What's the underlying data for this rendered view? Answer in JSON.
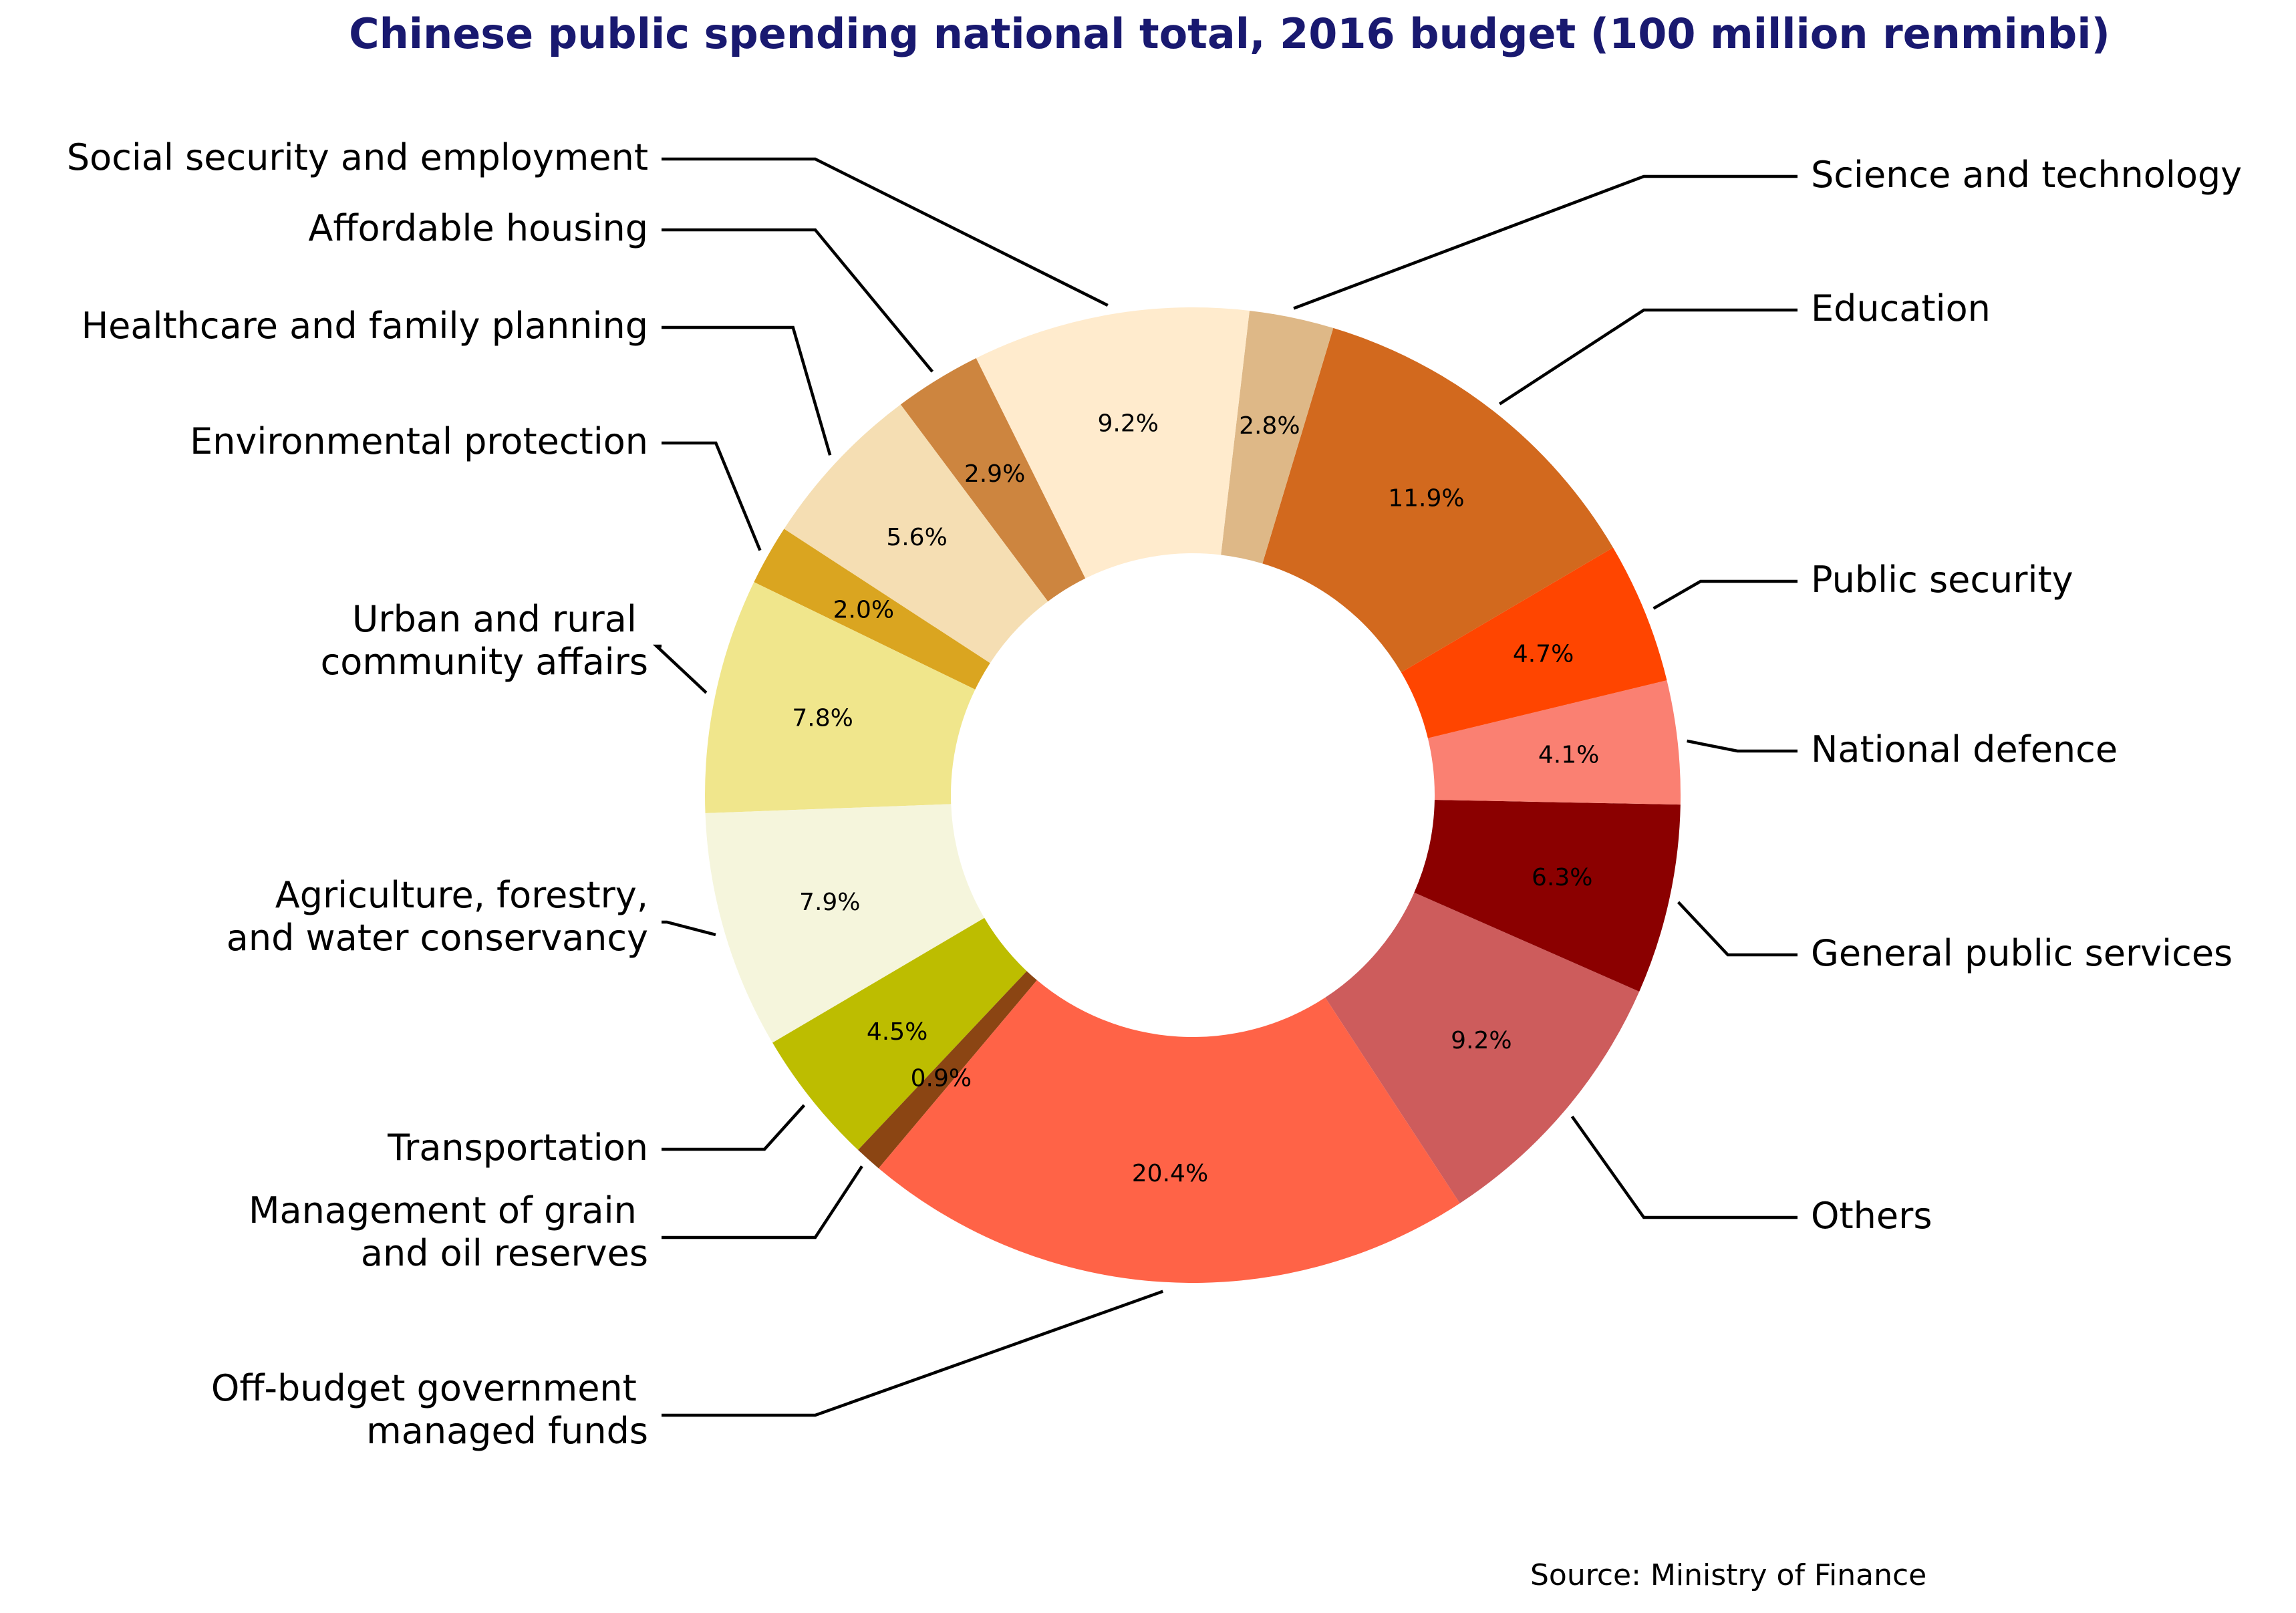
{
  "chart_data": {
    "type": "pie",
    "variant": "donut",
    "title": "Chinese public spending national total, 2016 budget (100 million renminbi)",
    "source": "Source: Ministry of Finance",
    "unit": "percent of total",
    "direction": "counterclockwise",
    "slices": [
      {
        "label": "Others",
        "value": 9.2,
        "pct_label": "9.2%",
        "color": "#CD5C5C",
        "label_side": "right"
      },
      {
        "label": "General public services",
        "value": 6.3,
        "pct_label": "6.3%",
        "color": "#8B0000",
        "label_side": "right"
      },
      {
        "label": "National defence",
        "value": 4.1,
        "pct_label": "4.1%",
        "color": "#FA8072",
        "label_side": "right"
      },
      {
        "label": "Public security",
        "value": 4.7,
        "pct_label": "4.7%",
        "color": "#FF4500",
        "label_side": "right"
      },
      {
        "label": "Education",
        "value": 11.9,
        "pct_label": "11.9%",
        "color": "#D2691E",
        "label_side": "right"
      },
      {
        "label": "Science and technology",
        "value": 2.8,
        "pct_label": "2.8%",
        "color": "#DEB887",
        "label_side": "right"
      },
      {
        "label": "Social security and employment",
        "value": 9.2,
        "pct_label": "9.2%",
        "color": "#FFEBCD",
        "label_side": "left"
      },
      {
        "label": "Affordable housing",
        "value": 2.9,
        "pct_label": "2.9%",
        "color": "#CD853F",
        "label_side": "left"
      },
      {
        "label": "Healthcare and family planning",
        "value": 5.6,
        "pct_label": "5.6%",
        "color": "#F5DEB3",
        "label_side": "left"
      },
      {
        "label": "Environmental protection",
        "value": 2.0,
        "pct_label": "2.0%",
        "color": "#DAA520",
        "label_side": "left"
      },
      {
        "label": "Urban and rural \ncommunity affairs",
        "value": 7.8,
        "pct_label": "7.8%",
        "color": "#F0E68C",
        "label_side": "left"
      },
      {
        "label": "Agriculture, forestry,\nand water conservancy",
        "value": 7.9,
        "pct_label": "7.9%",
        "color": "#F5F5DC",
        "label_side": "left"
      },
      {
        "label": "Transportation",
        "value": 4.5,
        "pct_label": "4.5%",
        "color": "#BDBD00",
        "label_side": "left"
      },
      {
        "label": "Management of grain \nand oil reserves",
        "value": 0.9,
        "pct_label": "0.9%",
        "color": "#8B4513",
        "label_side": "left"
      },
      {
        "label": "Off-budget government \nmanaged funds",
        "value": 20.4,
        "pct_label": "20.4%",
        "color": "#FF6347",
        "label_side": "left"
      }
    ]
  }
}
